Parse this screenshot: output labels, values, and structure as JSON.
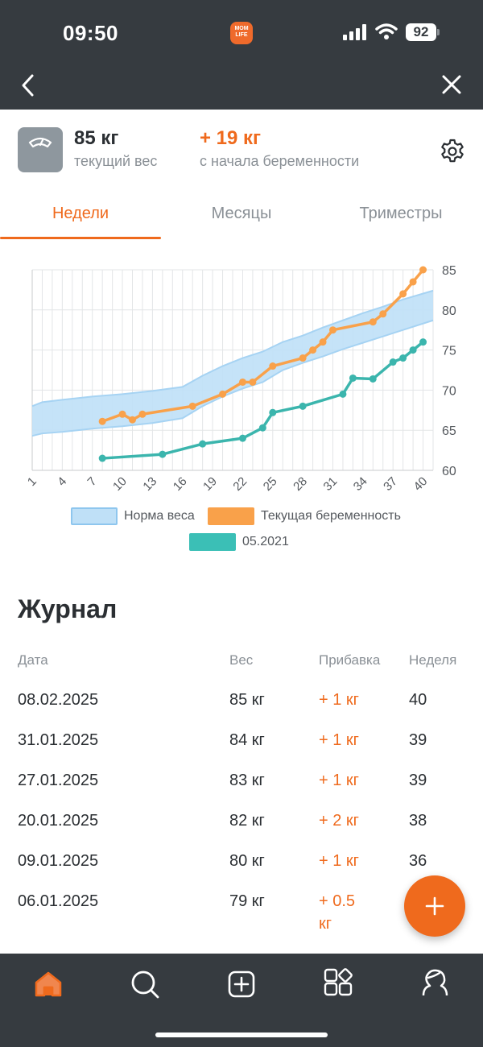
{
  "status_bar": {
    "time": "09:50",
    "app_badge": "MOM LIFE",
    "battery": "92"
  },
  "nav": {
    "back_icon": "chevron-left-icon",
    "close_icon": "close-icon"
  },
  "summary": {
    "current_weight": "85 кг",
    "current_label": "текущий вес",
    "gain_value": "+ 19 кг",
    "gain_label": "с начала беременности"
  },
  "tabs": [
    {
      "label": "Недели",
      "active": true
    },
    {
      "label": "Месяцы",
      "active": false
    },
    {
      "label": "Триместры",
      "active": false
    }
  ],
  "colors": {
    "accent": "#ef6a1d",
    "current_series": "#f9a14a",
    "previous_series": "#3bb5ad",
    "norm_band": "#bfe0f7",
    "dark_bar": "#363b40"
  },
  "chart_data": {
    "type": "line",
    "xlim": [
      1,
      41
    ],
    "ylim": [
      60,
      85
    ],
    "x_ticks": [
      1,
      4,
      7,
      10,
      13,
      16,
      19,
      22,
      25,
      28,
      31,
      34,
      37,
      40
    ],
    "y_ticks": [
      60,
      65,
      70,
      75,
      80,
      85
    ],
    "grid": true,
    "legend_position": "bottom",
    "norm_band": {
      "name": "Норма веса",
      "x": [
        1,
        2,
        4,
        7,
        10,
        13,
        16,
        18,
        20,
        22,
        24,
        26,
        28,
        30,
        32,
        34,
        36,
        38,
        41
      ],
      "lower": [
        64.3,
        64.6,
        64.8,
        65.2,
        65.5,
        65.9,
        66.5,
        68.0,
        69.2,
        70.2,
        71.0,
        72.5,
        73.4,
        74.2,
        75.1,
        75.9,
        76.7,
        77.5,
        78.7
      ],
      "upper": [
        68.0,
        68.5,
        68.8,
        69.2,
        69.5,
        69.9,
        70.4,
        71.8,
        73.0,
        74.0,
        74.8,
        76.0,
        76.8,
        77.8,
        78.7,
        79.6,
        80.4,
        81.3,
        82.4
      ]
    },
    "series": [
      {
        "name": "Текущая беременность",
        "x": [
          8,
          10,
          11,
          12,
          17,
          20,
          22,
          23,
          25,
          28,
          29,
          30,
          31,
          35,
          36,
          38,
          39,
          40
        ],
        "y": [
          66.1,
          67.0,
          66.3,
          67.0,
          68.0,
          69.5,
          71.0,
          71.0,
          73.0,
          74.0,
          75.0,
          76.0,
          77.5,
          78.5,
          79.5,
          82.0,
          83.5,
          85.0
        ]
      },
      {
        "name": "05.2021",
        "x": [
          8,
          14,
          18,
          22,
          24,
          25,
          28,
          32,
          33,
          35,
          37,
          38,
          39,
          40
        ],
        "y": [
          61.5,
          62.0,
          63.3,
          64.0,
          65.3,
          67.2,
          68.0,
          69.5,
          71.5,
          71.4,
          73.5,
          74.0,
          75.0,
          76.0
        ]
      }
    ]
  },
  "journal": {
    "title": "Журнал",
    "headers": {
      "date": "Дата",
      "weight": "Вес",
      "gain": "Прибавка",
      "week": "Неделя"
    },
    "rows": [
      {
        "date": "08.02.2025",
        "weight": "85 кг",
        "gain": "+ 1 кг",
        "week": "40"
      },
      {
        "date": "31.01.2025",
        "weight": "84 кг",
        "gain": "+ 1 кг",
        "week": "39"
      },
      {
        "date": "27.01.2025",
        "weight": "83 кг",
        "gain": "+ 1 кг",
        "week": "39"
      },
      {
        "date": "20.01.2025",
        "weight": "82 кг",
        "gain": "+ 2 кг",
        "week": "38"
      },
      {
        "date": "09.01.2025",
        "weight": "80 кг",
        "gain": "+ 1 кг",
        "week": "36"
      },
      {
        "date": "06.01.2025",
        "weight": "79 кг",
        "gain": "+ 0.5 кг",
        "gain_line1": "+ 0.5",
        "gain_line2": "кг",
        "week": ""
      }
    ]
  },
  "fab": {
    "icon": "plus-icon"
  },
  "bottom_nav": [
    {
      "icon": "home-icon",
      "active": true
    },
    {
      "icon": "search-icon",
      "active": false
    },
    {
      "icon": "add-square-icon",
      "active": false
    },
    {
      "icon": "apps-icon",
      "active": false
    },
    {
      "icon": "profile-icon",
      "active": false
    }
  ]
}
